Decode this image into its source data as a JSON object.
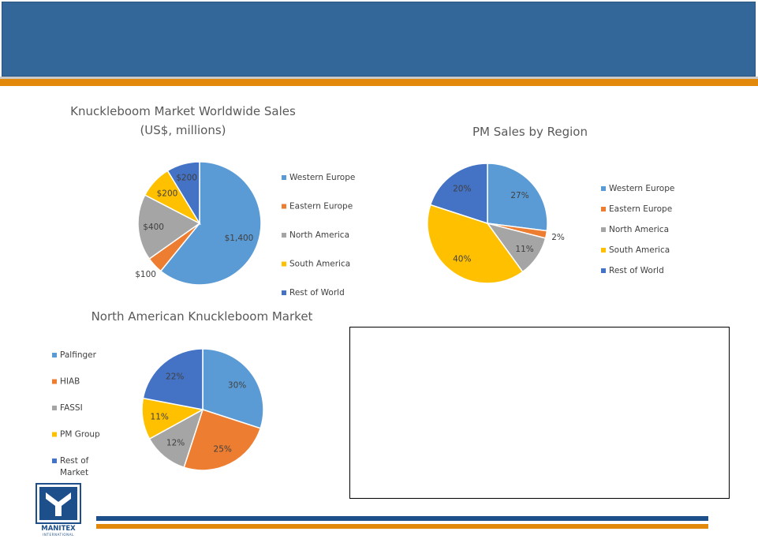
{
  "colors": {
    "header": "#336699",
    "accent_orange": "#e2890b",
    "footer_blue": "#1d4f8a",
    "pie": [
      "#5b9bd5",
      "#ed7d31",
      "#a5a5a5",
      "#ffc000",
      "#4472c4"
    ]
  },
  "logo": {
    "text": "MANITEX",
    "subtext": "INTERNATIONAL",
    "icon": "manitex-m-logo-icon"
  },
  "chart_data": [
    {
      "type": "pie",
      "title": [
        "Knuckleboom Market Worldwide Sales",
        "(US$, millions)"
      ],
      "categories": [
        "Western Europe",
        "Eastern Europe",
        "North America",
        "South America",
        "Rest of World"
      ],
      "values": [
        1400,
        100,
        400,
        200,
        200
      ],
      "labels": [
        "$1,400",
        "$100",
        "$400",
        "$200",
        "$200"
      ],
      "legend_position": "right"
    },
    {
      "type": "pie",
      "title": [
        "PM Sales by Region"
      ],
      "categories": [
        "Western Europe",
        "Eastern Europe",
        "North America",
        "South America",
        "Rest of World"
      ],
      "values": [
        27,
        2,
        11,
        40,
        20
      ],
      "labels": [
        "27%",
        "2%",
        "11%",
        "40%",
        "20%"
      ],
      "legend_position": "right"
    },
    {
      "type": "pie",
      "title": [
        "North American Knuckleboom Market"
      ],
      "categories": [
        "Palfinger",
        "HIAB",
        "FASSI",
        "PM Group",
        "Rest of Market"
      ],
      "legend_lines": [
        [
          "Palfinger"
        ],
        [
          "HIAB"
        ],
        [
          "FASSI"
        ],
        [
          "PM Group"
        ],
        [
          "Rest of",
          "Market"
        ]
      ],
      "values": [
        30,
        25,
        12,
        11,
        22
      ],
      "labels": [
        "30%",
        "25%",
        "12%",
        "11%",
        "22%"
      ],
      "legend_position": "left"
    }
  ]
}
